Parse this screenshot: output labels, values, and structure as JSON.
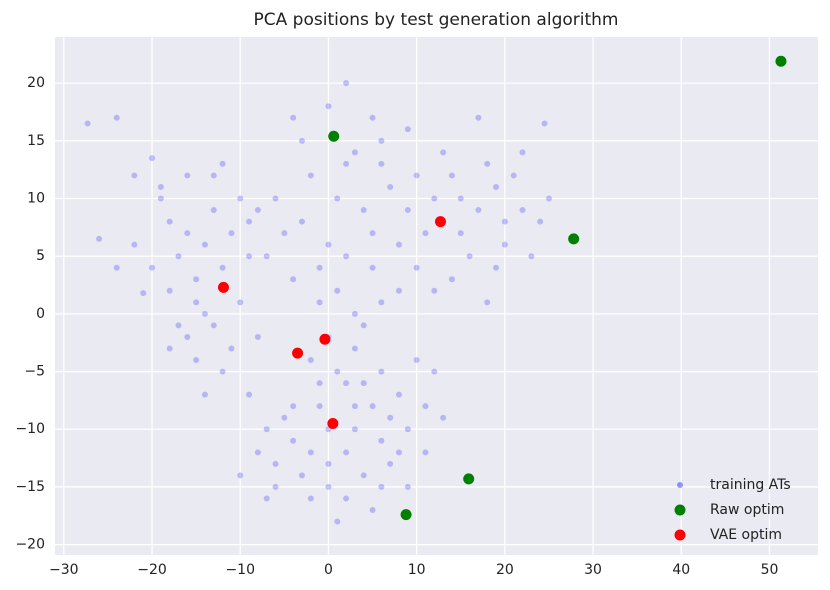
{
  "chart_data": {
    "type": "scatter",
    "title": "PCA positions by test generation algorithm",
    "xlim": [
      -31,
      55.5
    ],
    "ylim": [
      -20.9,
      24
    ],
    "xticks": [
      {
        "value": -30,
        "label": "−30"
      },
      {
        "value": -20,
        "label": "−20"
      },
      {
        "value": -10,
        "label": "−10"
      },
      0,
      10,
      20,
      30,
      40,
      50
    ],
    "yticks": [
      {
        "value": -20,
        "label": "−20"
      },
      {
        "value": -15,
        "label": "−15"
      },
      {
        "value": -10,
        "label": "−10"
      },
      {
        "value": -5,
        "label": "−5"
      },
      0,
      5,
      10,
      15,
      20
    ],
    "grid": true,
    "legend": "lower right",
    "series": [
      {
        "name": "training ATs",
        "color": "#0000ff",
        "opacity": 0.22,
        "x": [
          -27.3,
          -24,
          -22,
          -20,
          -19,
          -18,
          -17,
          -16,
          -15,
          -14,
          -13,
          -12,
          -11,
          -10,
          -9,
          -10,
          -13,
          -16,
          -15,
          -12,
          -8,
          -9,
          -18,
          -20,
          -22,
          -17,
          -14,
          -11,
          -14,
          -19,
          -16,
          -12,
          -8,
          -13,
          -15,
          -18,
          -21,
          -26,
          -24,
          0,
          2,
          5,
          3,
          6,
          -2,
          1,
          4,
          7,
          -3,
          0,
          2,
          5,
          8,
          -5,
          -4,
          1,
          3,
          6,
          -6,
          -1,
          4,
          9,
          10,
          -3,
          2,
          8,
          -7,
          0,
          -2,
          1,
          3,
          -1,
          2,
          6,
          -4,
          9,
          5,
          -1,
          12,
          14,
          15,
          17,
          19,
          20,
          22,
          23,
          16,
          13,
          18,
          21,
          24,
          25,
          11,
          14,
          19,
          17,
          22,
          24.5,
          18,
          20,
          15,
          12,
          10,
          5,
          7,
          4,
          6,
          8,
          9,
          3,
          2,
          0,
          -2,
          -4,
          -6,
          -5,
          -7,
          -8,
          -3,
          0,
          2,
          4,
          7,
          9,
          11,
          12,
          10,
          6,
          -1,
          -9,
          -10,
          -6,
          -2,
          1,
          5,
          8,
          11,
          13,
          3,
          -4,
          -7,
          0,
          6
        ],
        "values": [
          16.5,
          17,
          12,
          13.5,
          10,
          8,
          5,
          7,
          3,
          6,
          9,
          4,
          7,
          1,
          5,
          10,
          12,
          -2,
          -4,
          -5,
          -2,
          8,
          2,
          4,
          6,
          -1,
          0,
          -3,
          -7,
          11,
          12,
          13,
          9,
          -1,
          1,
          -3,
          1.8,
          6.5,
          4,
          18,
          20,
          17,
          14,
          13,
          12,
          10,
          9,
          11,
          8,
          6,
          5,
          4,
          6,
          7,
          3,
          2,
          0,
          1,
          10,
          1,
          -1,
          9,
          12,
          15,
          13,
          2,
          5,
          -2,
          -4,
          -5,
          -3,
          -6,
          -6,
          15,
          17,
          16,
          7,
          4,
          10,
          12,
          7,
          9,
          11,
          6,
          9,
          5,
          5,
          14,
          13,
          12,
          8,
          10,
          7,
          3,
          4,
          17,
          14,
          16.5,
          1,
          8,
          10,
          2,
          4,
          -8,
          -9,
          -6,
          -11,
          -7,
          -10,
          -10,
          -12,
          -10,
          -12,
          -11,
          -13,
          -9,
          -10,
          -12,
          -14,
          -15,
          -16,
          -14,
          -13,
          -15,
          -8,
          -5,
          -4,
          -5,
          -8,
          -7,
          -14,
          -15,
          -16,
          -18,
          -17,
          -12,
          -12,
          -9,
          -8,
          -8,
          -16,
          -13,
          -15
        ]
      },
      {
        "name": "Raw optim",
        "color": "#008000",
        "x": [
          51.3,
          0.6,
          27.8,
          15.9,
          8.8
        ],
        "values": [
          21.9,
          15.4,
          6.5,
          -14.3,
          -17.4
        ]
      },
      {
        "name": "VAE optim",
        "color": "#ff0000",
        "x": [
          12.7,
          -11.9,
          -0.4,
          -3.5,
          0.5
        ],
        "values": [
          8,
          2.3,
          -2.2,
          -3.4,
          -9.5
        ]
      }
    ]
  }
}
